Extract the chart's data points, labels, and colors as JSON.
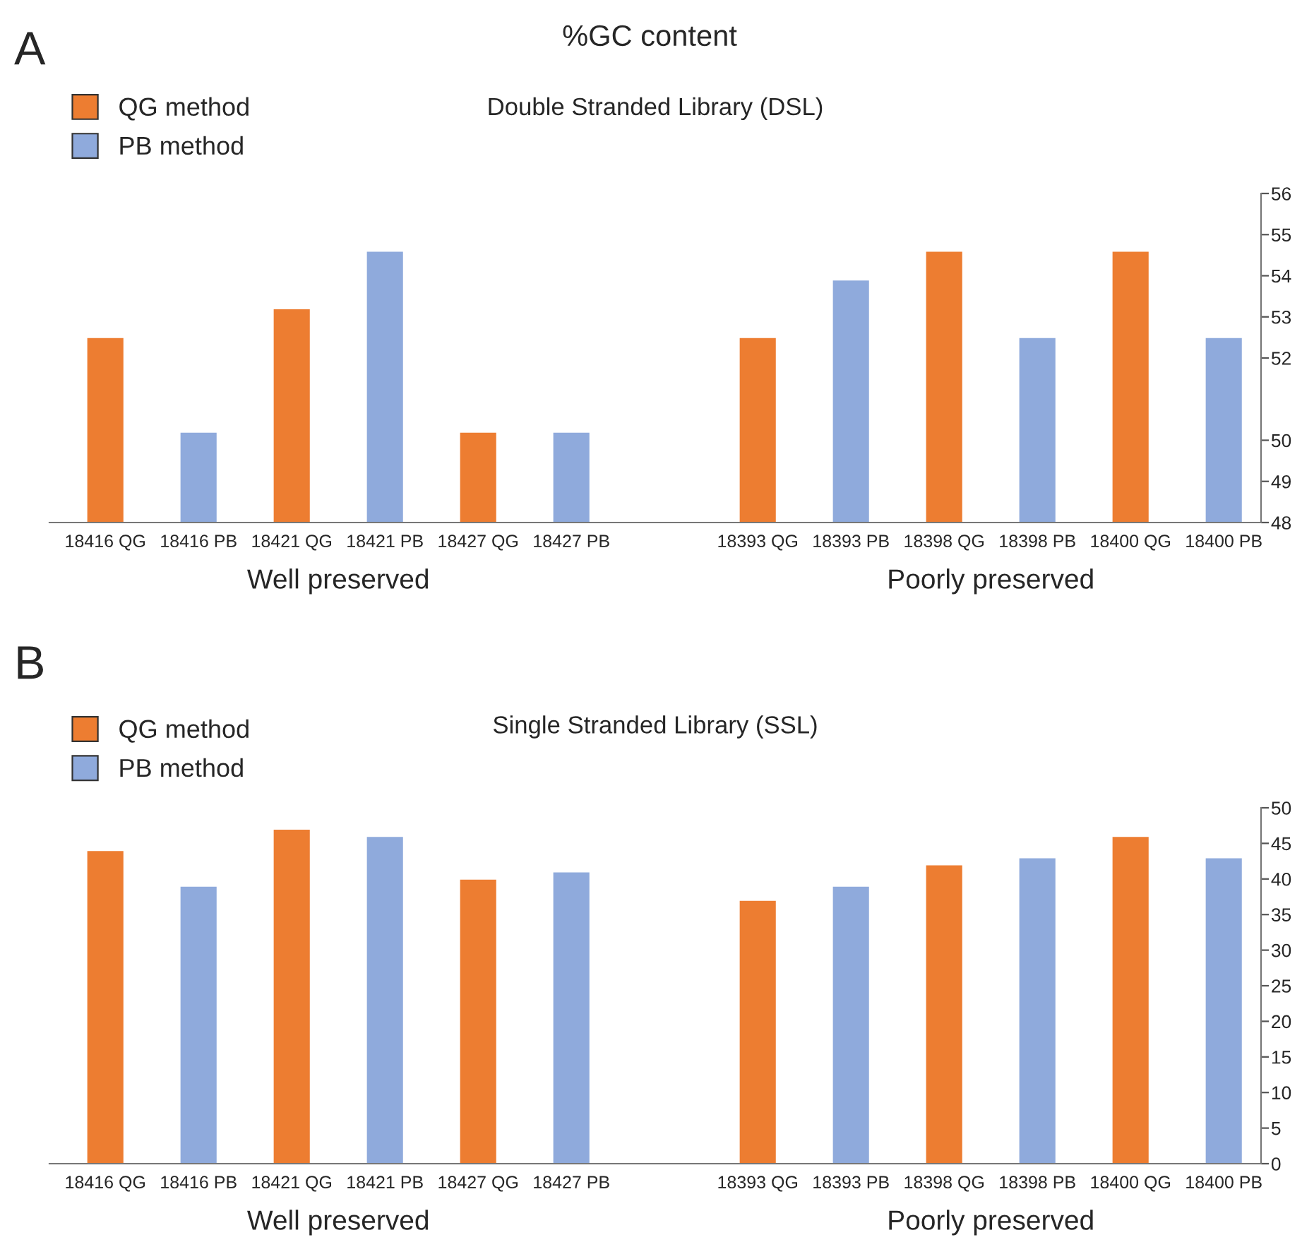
{
  "chart_data": [
    {
      "type": "bar",
      "title": "Double Stranded Library (DSL)",
      "stacked": true,
      "categories": [
        "18416 QG",
        "18416 PB",
        "18421 QG",
        "18421 PB",
        "18427 QG",
        "18427 PB",
        null,
        "18393 QG",
        "18393 PB",
        "18398 QG",
        "18398 PB",
        "18400 QG",
        "18400 PB"
      ],
      "series": [
        {
          "name": "QG method",
          "color": "#ed7d31",
          "values": [
            52.5,
            null,
            53.2,
            null,
            50.2,
            null,
            null,
            52.5,
            null,
            54.6,
            null,
            54.6,
            null
          ]
        },
        {
          "name": "PB method",
          "color": "#8faadc",
          "values": [
            null,
            50.2,
            null,
            54.6,
            null,
            50.2,
            null,
            null,
            53.9,
            null,
            52.5,
            null,
            52.5
          ]
        }
      ],
      "ylim": [
        48,
        56
      ],
      "yticks": [
        48,
        49,
        50,
        52,
        53,
        54,
        55,
        56
      ],
      "grid": false,
      "legend": "top left",
      "annotations": [
        "A",
        "%GC content",
        "Well preserved",
        "Poorly preserved"
      ]
    },
    {
      "type": "bar",
      "title": "Single Stranded Library (SSL)",
      "stacked": true,
      "categories": [
        "18416 QG",
        "18416 PB",
        "18421 QG",
        "18421 PB",
        "18427 QG",
        "18427 PB",
        null,
        "18393 QG",
        "18393 PB",
        "18398 QG",
        "18398 PB",
        "18400 QG",
        "18400 PB"
      ],
      "series": [
        {
          "name": "QG method",
          "color": "#ed7d31",
          "values": [
            44,
            null,
            47,
            null,
            40,
            null,
            null,
            37,
            null,
            42,
            null,
            46,
            null
          ]
        },
        {
          "name": "PB method",
          "color": "#8faadc",
          "values": [
            null,
            39,
            null,
            46,
            null,
            41,
            null,
            null,
            39,
            null,
            43,
            null,
            43
          ]
        }
      ],
      "ylim": [
        0,
        50
      ],
      "yticks": [
        0,
        5,
        10,
        15,
        20,
        25,
        30,
        35,
        40,
        45,
        50
      ],
      "grid": false,
      "legend": "top left",
      "annotations": [
        "B",
        "Well preserved",
        "Poorly preserved"
      ]
    }
  ]
}
